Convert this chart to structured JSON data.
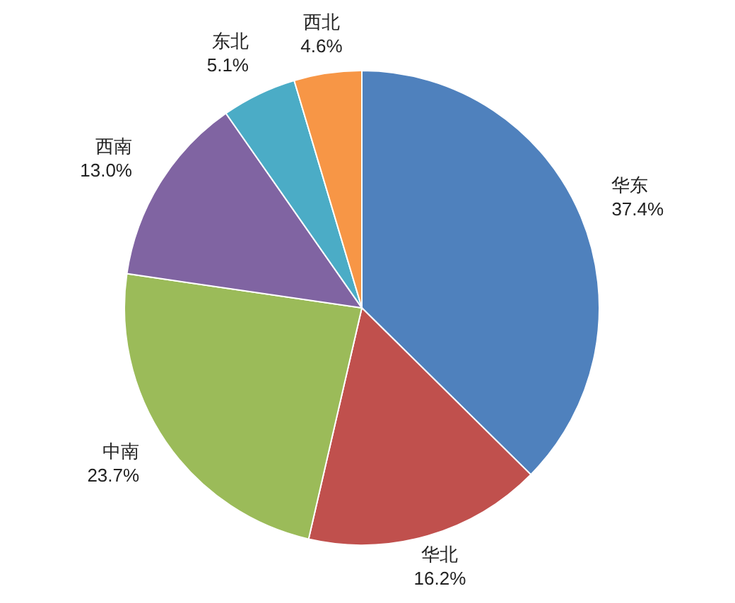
{
  "chart_data": {
    "type": "pie",
    "categories": [
      "华东",
      "华北",
      "中南",
      "西南",
      "东北",
      "西北"
    ],
    "values": [
      37.4,
      16.2,
      23.7,
      13.0,
      5.1,
      4.6
    ],
    "value_labels": [
      "37.4%",
      "16.2%",
      "23.7%",
      "13.0%",
      "5.1%",
      "4.6%"
    ],
    "colors": [
      "#4f81bd",
      "#c0504d",
      "#9bbb59",
      "#8064a2",
      "#4bacc6",
      "#f79646"
    ],
    "legend": false
  }
}
